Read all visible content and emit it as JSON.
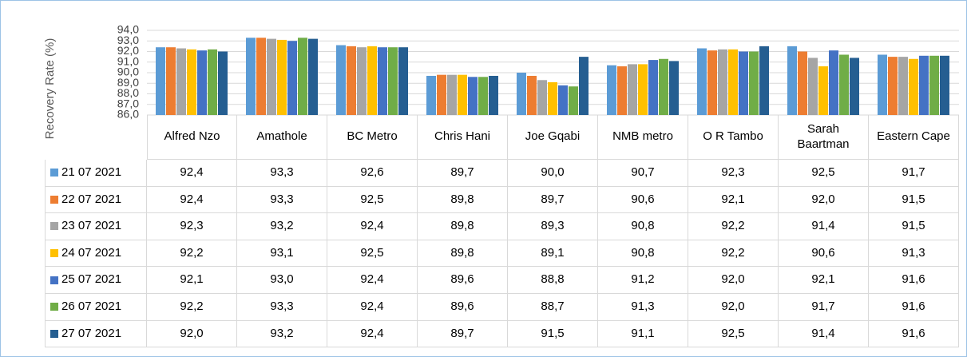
{
  "chart_data": {
    "type": "bar",
    "y_label": "Recovery Rate (%)",
    "categories": [
      "Alfred Nzo",
      "Amathole",
      "BC Metro",
      "Chris Hani",
      "Joe Gqabi",
      "NMB metro",
      "O R Tambo",
      "Sarah Baartman",
      "Eastern Cape"
    ],
    "ylim": [
      86,
      94
    ],
    "yticks": [
      {
        "value": 86,
        "label": "86,0"
      },
      {
        "value": 87,
        "label": "87,0"
      },
      {
        "value": 88,
        "label": "88,0"
      },
      {
        "value": 89,
        "label": "89,0"
      },
      {
        "value": 90,
        "label": "90,0"
      },
      {
        "value": 91,
        "label": "91,0"
      },
      {
        "value": 92,
        "label": "92,0"
      },
      {
        "value": 93,
        "label": "93,0"
      },
      {
        "value": 94,
        "label": "94,0"
      }
    ],
    "grid": true,
    "series": [
      {
        "name": "21 07 2021",
        "color": "#5b9bd5",
        "values": [
          92.4,
          93.3,
          92.6,
          89.7,
          90.0,
          90.7,
          92.3,
          92.5,
          91.7
        ],
        "value_labels": [
          "92,4",
          "93,3",
          "92,6",
          "89,7",
          "90,0",
          "90,7",
          "92,3",
          "92,5",
          "91,7"
        ]
      },
      {
        "name": "22 07 2021",
        "color": "#ed7d31",
        "values": [
          92.4,
          93.3,
          92.5,
          89.8,
          89.7,
          90.6,
          92.1,
          92.0,
          91.5
        ],
        "value_labels": [
          "92,4",
          "93,3",
          "92,5",
          "89,8",
          "89,7",
          "90,6",
          "92,1",
          "92,0",
          "91,5"
        ]
      },
      {
        "name": "23 07 2021",
        "color": "#a5a5a5",
        "values": [
          92.3,
          93.2,
          92.4,
          89.8,
          89.3,
          90.8,
          92.2,
          91.4,
          91.5
        ],
        "value_labels": [
          "92,3",
          "93,2",
          "92,4",
          "89,8",
          "89,3",
          "90,8",
          "92,2",
          "91,4",
          "91,5"
        ]
      },
      {
        "name": "24 07 2021",
        "color": "#ffc000",
        "values": [
          92.2,
          93.1,
          92.5,
          89.8,
          89.1,
          90.8,
          92.2,
          90.6,
          91.3
        ],
        "value_labels": [
          "92,2",
          "93,1",
          "92,5",
          "89,8",
          "89,1",
          "90,8",
          "92,2",
          "90,6",
          "91,3"
        ]
      },
      {
        "name": "25 07 2021",
        "color": "#4472c4",
        "values": [
          92.1,
          93.0,
          92.4,
          89.6,
          88.8,
          91.2,
          92.0,
          92.1,
          91.6
        ],
        "value_labels": [
          "92,1",
          "93,0",
          "92,4",
          "89,6",
          "88,8",
          "91,2",
          "92,0",
          "92,1",
          "91,6"
        ]
      },
      {
        "name": "26 07 2021",
        "color": "#70ad47",
        "values": [
          92.2,
          93.3,
          92.4,
          89.6,
          88.7,
          91.3,
          92.0,
          91.7,
          91.6
        ],
        "value_labels": [
          "92,2",
          "93,3",
          "92,4",
          "89,6",
          "88,7",
          "91,3",
          "92,0",
          "91,7",
          "91,6"
        ]
      },
      {
        "name": "27 07 2021",
        "color": "#255e91",
        "values": [
          92.0,
          93.2,
          92.4,
          89.7,
          91.5,
          91.1,
          92.5,
          91.4,
          91.6
        ],
        "value_labels": [
          "92,0",
          "93,2",
          "92,4",
          "89,7",
          "91,5",
          "91,1",
          "92,5",
          "91,4",
          "91,6"
        ]
      }
    ]
  }
}
